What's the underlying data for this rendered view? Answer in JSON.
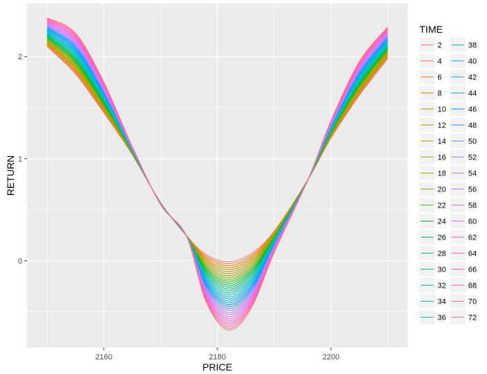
{
  "chart_data": {
    "type": "line",
    "title": "",
    "xlabel": "PRICE",
    "ylabel": "RETURN",
    "xlim": [
      2146.5,
      2213.5
    ],
    "ylim": [
      -0.85,
      2.52
    ],
    "x_ticks": [
      2160,
      2180,
      2200
    ],
    "x_tick_labels": [
      "2160",
      "2180",
      "2200"
    ],
    "y_ticks": [
      0,
      1,
      2
    ],
    "y_tick_labels": [
      "0",
      "1",
      "2"
    ],
    "grid": true,
    "legend_title": "TIME",
    "legend_position": "right",
    "x_range": [
      2150,
      2210
    ],
    "series_note_values": "Each series is a smooth curve over PRICE 2150–2210. Values estimated from the plot; curves interpolate between the two extreme series (TIME 2 and TIME 72).",
    "series": [
      {
        "name": "2",
        "color": "#F8766D"
      },
      {
        "name": "4",
        "color": "#F07F4F"
      },
      {
        "name": "6",
        "color": "#E7861B"
      },
      {
        "name": "8",
        "color": "#DB8E00"
      },
      {
        "name": "10",
        "color": "#CF9400"
      },
      {
        "name": "12",
        "color": "#C09B00"
      },
      {
        "name": "14",
        "color": "#B0A100"
      },
      {
        "name": "16",
        "color": "#9DA700"
      },
      {
        "name": "18",
        "color": "#86AC00"
      },
      {
        "name": "20",
        "color": "#6BB100"
      },
      {
        "name": "22",
        "color": "#45B500"
      },
      {
        "name": "24",
        "color": "#00B81F"
      },
      {
        "name": "26",
        "color": "#00BB4E"
      },
      {
        "name": "28",
        "color": "#00BE6C"
      },
      {
        "name": "30",
        "color": "#00C086"
      },
      {
        "name": "32",
        "color": "#00C19C"
      },
      {
        "name": "34",
        "color": "#00C0B2"
      },
      {
        "name": "36",
        "color": "#00BEC6"
      },
      {
        "name": "38",
        "color": "#00BAD8"
      },
      {
        "name": "40",
        "color": "#00B5E9"
      },
      {
        "name": "42",
        "color": "#00AEF6"
      },
      {
        "name": "44",
        "color": "#00A5FF"
      },
      {
        "name": "46",
        "color": "#009AFF"
      },
      {
        "name": "48",
        "color": "#2F8EFF"
      },
      {
        "name": "50",
        "color": "#6F8BFF"
      },
      {
        "name": "52",
        "color": "#9786FF"
      },
      {
        "name": "54",
        "color": "#B680FF"
      },
      {
        "name": "56",
        "color": "#CC79FF"
      },
      {
        "name": "58",
        "color": "#DF71F8"
      },
      {
        "name": "60",
        "color": "#ED68ED"
      },
      {
        "name": "62",
        "color": "#F763DF"
      },
      {
        "name": "64",
        "color": "#FC61CF"
      },
      {
        "name": "66",
        "color": "#FF62BC"
      },
      {
        "name": "68",
        "color": "#FF64A8"
      },
      {
        "name": "70",
        "color": "#FE6791"
      },
      {
        "name": "72",
        "color": "#F8767D"
      }
    ],
    "extreme_series_values": {
      "x": [
        2150,
        2155,
        2160,
        2165,
        2170,
        2174.5,
        2178,
        2182,
        2186,
        2190,
        2196,
        2200,
        2205,
        2210
      ],
      "time_2": [
        2.1,
        1.83,
        1.45,
        1.04,
        0.57,
        0.25,
        0.06,
        -0.01,
        0.07,
        0.29,
        0.8,
        1.2,
        1.62,
        1.98
      ],
      "time_72": [
        2.38,
        2.23,
        1.75,
        1.12,
        0.55,
        0.25,
        -0.4,
        -0.68,
        -0.46,
        0.08,
        0.8,
        1.37,
        1.95,
        2.29
      ]
    },
    "background": "#EBEBEB",
    "gridline_color": "#FFFFFF"
  }
}
